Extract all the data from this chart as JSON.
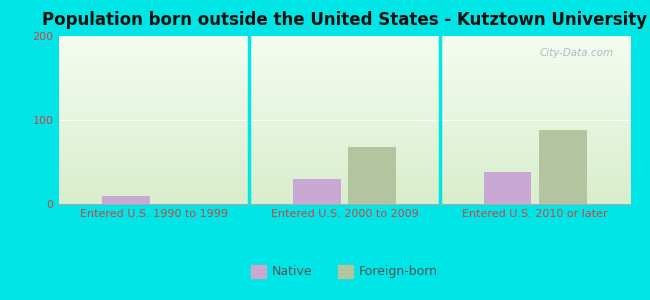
{
  "title": "Population born outside the United States - Kutztown University",
  "categories": [
    "Entered U.S. 1990 to 1999",
    "Entered U.S. 2000 to 2009",
    "Entered U.S. 2010 or later"
  ],
  "native_values": [
    10,
    30,
    38
  ],
  "foreign_values": [
    0,
    68,
    88
  ],
  "native_color": "#c9a8d4",
  "foreign_color": "#b5c4a0",
  "ylim": [
    0,
    200
  ],
  "yticks": [
    0,
    100,
    200
  ],
  "bar_width": 0.25,
  "figure_bg": "#00e5e5",
  "plot_bg_top": "#f5fcf0",
  "plot_bg_bottom": "#d8eecc",
  "legend_native": "Native",
  "legend_foreign": "Foreign-born",
  "title_fontsize": 12,
  "axis_fontsize": 8,
  "legend_fontsize": 9,
  "tick_color": "#cc4444",
  "watermark": "City-Data.com"
}
